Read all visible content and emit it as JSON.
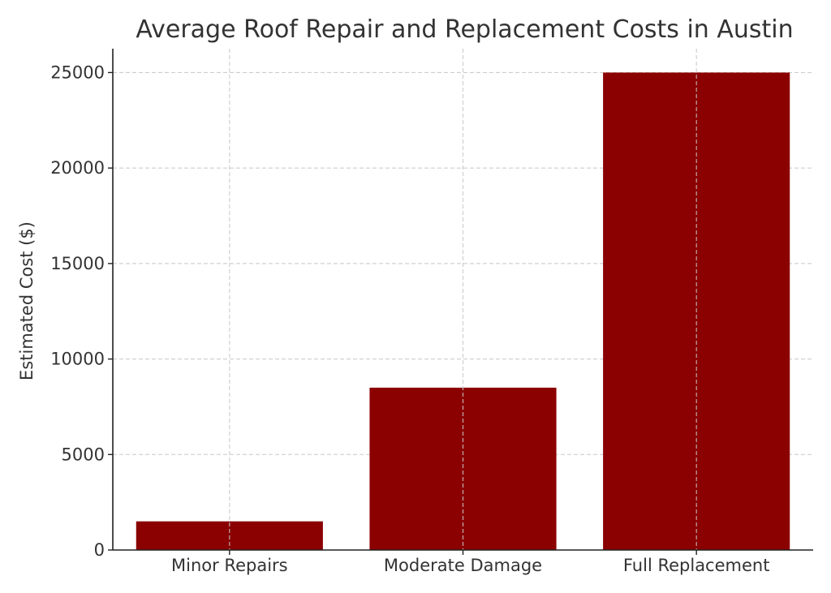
{
  "chart_data": {
    "type": "bar",
    "title": "Average Roof Repair and Replacement Costs in Austin",
    "xlabel": "",
    "ylabel": "Estimated Cost ($)",
    "categories": [
      "Minor Repairs",
      "Moderate Damage",
      "Full Replacement"
    ],
    "values": [
      1500,
      8500,
      25000
    ],
    "ylim": [
      0,
      26250
    ],
    "yticks": [
      0,
      5000,
      10000,
      15000,
      20000,
      25000
    ],
    "grid": true,
    "legend": "none",
    "colors": {
      "bar": "#8b0000",
      "text": "#333333",
      "grid": "#c8c8c8",
      "axis": "#222222"
    }
  }
}
